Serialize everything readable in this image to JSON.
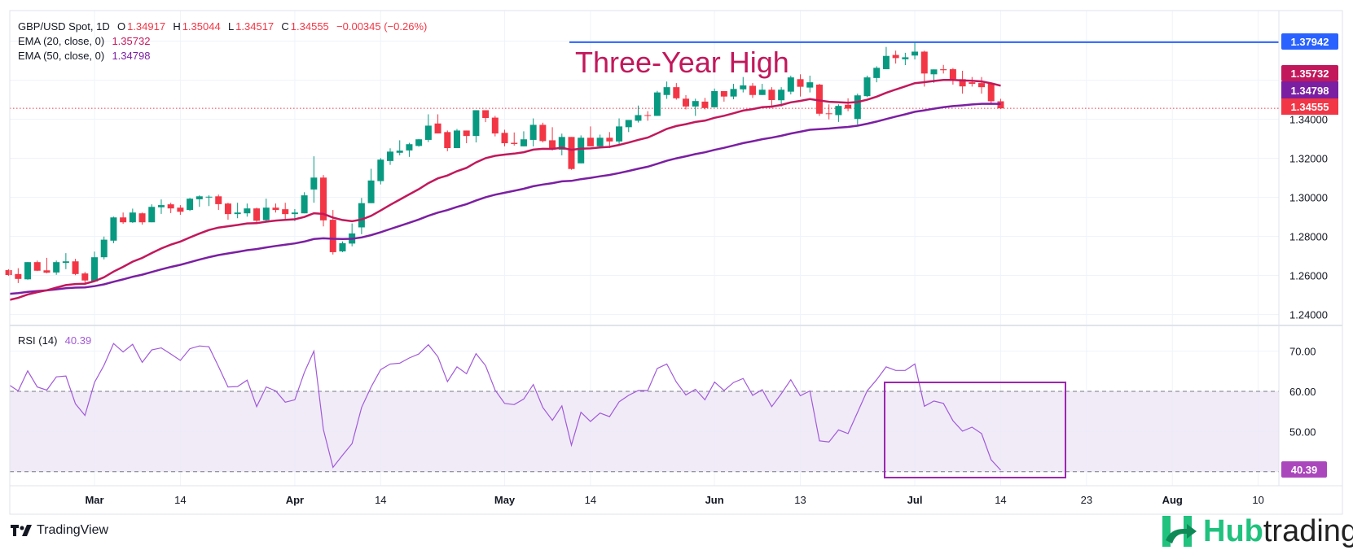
{
  "header": {
    "symbol": "GBP/USD Spot, 1D",
    "o_label": "O",
    "o_value": "1.34917",
    "h_label": "H",
    "h_value": "1.35044",
    "l_label": "L",
    "l_value": "1.34517",
    "c_label": "C",
    "c_value": "1.34555",
    "change": "−0.00345 (−0.26%)",
    "ema20_label": "EMA (20, close, 0)",
    "ema20_value": "1.35732",
    "ema50_label": "EMA (50, close, 0)",
    "ema50_value": "1.34798",
    "rsi_label": "RSI (14)",
    "rsi_value": "40.39"
  },
  "annotation": "Three-Year High",
  "price_tags": {
    "high_line": "1.37942",
    "ema20": "1.35732",
    "ema50": "1.34798",
    "last": "1.34555",
    "rsi": "40.39"
  },
  "branding": {
    "tradingview": "TradingView",
    "hub_a": "Hub",
    "hub_b": "trading"
  },
  "colors": {
    "up": "#089981",
    "down": "#f23645",
    "ema20": "#c2185b",
    "ema50": "#7b1fa2",
    "high_line": "#2962ff",
    "rsi": "#a259d9",
    "rsi_box": "#9c27b0"
  },
  "chart_data": {
    "type": "candlestick",
    "title": "GBP/USD Spot, 1D",
    "price_axis": {
      "ticks": [
        "1.24000",
        "1.26000",
        "1.28000",
        "1.30000",
        "1.32000",
        "1.34000"
      ],
      "grid_levels": [
        1.24,
        1.26,
        1.28,
        1.3,
        1.32,
        1.34,
        1.36,
        1.38
      ]
    },
    "rsi_axis": {
      "ticks": [
        "70.00",
        "60.00",
        "50.00"
      ],
      "band": [
        40,
        60
      ],
      "grid_levels": [
        70,
        60,
        50,
        40
      ]
    },
    "x_ticks": [
      {
        "label": "Mar",
        "bar": 9,
        "bold": true
      },
      {
        "label": "14",
        "bar": 18
      },
      {
        "label": "Apr",
        "bar": 30,
        "bold": true
      },
      {
        "label": "14",
        "bar": 39
      },
      {
        "label": "May",
        "bar": 52,
        "bold": true
      },
      {
        "label": "14",
        "bar": 61
      },
      {
        "label": "Jun",
        "bar": 74,
        "bold": true
      },
      {
        "label": "13",
        "bar": 83
      },
      {
        "label": "Jul",
        "bar": 95,
        "bold": true
      },
      {
        "label": "14",
        "bar": 104
      },
      {
        "label": "23",
        "bar": 113
      },
      {
        "label": "Aug",
        "bar": 122,
        "bold": true
      },
      {
        "label": "10",
        "bar": 131
      }
    ],
    "high_level": 1.37942,
    "last_price": 1.34555,
    "ema_seeds": {
      "ema20": 1.2475,
      "ema50": 1.2506
    },
    "ohlc": [
      [
        1.2627,
        1.2632,
        1.2598,
        1.2602
      ],
      [
        1.2607,
        1.2637,
        1.2561,
        1.2582
      ],
      [
        1.258,
        1.2668,
        1.2578,
        1.2668
      ],
      [
        1.2668,
        1.2676,
        1.2622,
        1.2624
      ],
      [
        1.2626,
        1.269,
        1.2611,
        1.2614
      ],
      [
        1.2615,
        1.2676,
        1.2603,
        1.2668
      ],
      [
        1.2664,
        1.2714,
        1.2632,
        1.2672
      ],
      [
        1.2672,
        1.2685,
        1.2601,
        1.2607
      ],
      [
        1.261,
        1.2618,
        1.2563,
        1.2574
      ],
      [
        1.2569,
        1.2722,
        1.2569,
        1.2693
      ],
      [
        1.2693,
        1.2799,
        1.2682,
        1.2783
      ],
      [
        1.2778,
        1.2901,
        1.2765,
        1.2897
      ],
      [
        1.2897,
        1.2922,
        1.2864,
        1.2872
      ],
      [
        1.2872,
        1.2942,
        1.2869,
        1.2922
      ],
      [
        1.2918,
        1.2922,
        1.286,
        1.2872
      ],
      [
        1.2872,
        1.2964,
        1.2872,
        1.2951
      ],
      [
        1.2949,
        1.2989,
        1.2915,
        1.296
      ],
      [
        1.2964,
        1.2972,
        1.2919,
        1.2943
      ],
      [
        1.2947,
        1.296,
        1.291,
        1.2926
      ],
      [
        1.2935,
        1.2997,
        1.293,
        1.2993
      ],
      [
        1.299,
        1.301,
        1.2951,
        1.3005
      ],
      [
        1.3,
        1.301,
        1.2955,
        1.3003
      ],
      [
        1.3005,
        1.3014,
        1.2935,
        1.2965
      ],
      [
        1.2968,
        1.2972,
        1.2885,
        1.2914
      ],
      [
        1.2914,
        1.2972,
        1.2893,
        1.2922
      ],
      [
        1.2918,
        1.2968,
        1.2901,
        1.2943
      ],
      [
        1.2943,
        1.2947,
        1.2872,
        1.288
      ],
      [
        1.2883,
        1.2993,
        1.2875,
        1.2947
      ],
      [
        1.2947,
        1.2968,
        1.2922,
        1.2935
      ],
      [
        1.2939,
        1.2972,
        1.2889,
        1.2914
      ],
      [
        1.2914,
        1.294,
        1.2878,
        1.2922
      ],
      [
        1.2918,
        1.3026,
        1.2918,
        1.301
      ],
      [
        1.304,
        1.321,
        1.2972,
        1.3101
      ],
      [
        1.3101,
        1.3114,
        1.2851,
        1.2882
      ],
      [
        1.2885,
        1.2935,
        1.2707,
        1.2719
      ],
      [
        1.2723,
        1.2774,
        1.2719,
        1.2765
      ],
      [
        1.2763,
        1.2866,
        1.2749,
        1.2815
      ],
      [
        1.2846,
        1.2997,
        1.2811,
        1.297
      ],
      [
        1.297,
        1.3146,
        1.297,
        1.3086
      ],
      [
        1.3083,
        1.3201,
        1.3066,
        1.3193
      ],
      [
        1.3186,
        1.3251,
        1.3166,
        1.3234
      ],
      [
        1.3228,
        1.3292,
        1.3215,
        1.3239
      ],
      [
        1.324,
        1.3279,
        1.3207,
        1.3272
      ],
      [
        1.3263,
        1.3299,
        1.3259,
        1.3297
      ],
      [
        1.3294,
        1.3425,
        1.3283,
        1.3367
      ],
      [
        1.3378,
        1.3425,
        1.3327,
        1.3327
      ],
      [
        1.3334,
        1.3342,
        1.3236,
        1.3252
      ],
      [
        1.3252,
        1.335,
        1.3252,
        1.3342
      ],
      [
        1.3342,
        1.3342,
        1.3277,
        1.3314
      ],
      [
        1.3314,
        1.3446,
        1.3281,
        1.3446
      ],
      [
        1.3446,
        1.3446,
        1.3385,
        1.3406
      ],
      [
        1.3408,
        1.3417,
        1.3312,
        1.3327
      ],
      [
        1.333,
        1.3346,
        1.3261,
        1.3277
      ],
      [
        1.3279,
        1.3332,
        1.3265,
        1.3273
      ],
      [
        1.3261,
        1.3338,
        1.3261,
        1.3297
      ],
      [
        1.3294,
        1.3404,
        1.3261,
        1.3371
      ],
      [
        1.3371,
        1.3382,
        1.3281,
        1.3288
      ],
      [
        1.3292,
        1.3359,
        1.324,
        1.3244
      ],
      [
        1.3244,
        1.3326,
        1.3215,
        1.3309
      ],
      [
        1.3309,
        1.3309,
        1.3141,
        1.3145
      ],
      [
        1.3174,
        1.3317,
        1.3174,
        1.3305
      ],
      [
        1.3305,
        1.3363,
        1.3261,
        1.3261
      ],
      [
        1.3261,
        1.3321,
        1.3257,
        1.3305
      ],
      [
        1.3305,
        1.3334,
        1.3252,
        1.3286
      ],
      [
        1.3286,
        1.3404,
        1.3273,
        1.3363
      ],
      [
        1.3359,
        1.3396,
        1.3334,
        1.3396
      ],
      [
        1.3392,
        1.347,
        1.3383,
        1.3421
      ],
      [
        1.3421,
        1.3441,
        1.3392,
        1.3417
      ],
      [
        1.3417,
        1.3545,
        1.3417,
        1.3537
      ],
      [
        1.3524,
        1.3593,
        1.3504,
        1.3564
      ],
      [
        1.3564,
        1.3585,
        1.35,
        1.3507
      ],
      [
        1.3505,
        1.3523,
        1.345,
        1.3465
      ],
      [
        1.3465,
        1.3505,
        1.3417,
        1.3493
      ],
      [
        1.349,
        1.3509,
        1.345,
        1.3457
      ],
      [
        1.3461,
        1.3557,
        1.3461,
        1.3544
      ],
      [
        1.3544,
        1.3544,
        1.349,
        1.3516
      ],
      [
        1.3516,
        1.3581,
        1.3502,
        1.3555
      ],
      [
        1.3553,
        1.3616,
        1.3537,
        1.3573
      ],
      [
        1.3571,
        1.3585,
        1.3509,
        1.3524
      ],
      [
        1.3524,
        1.3581,
        1.3524,
        1.3551
      ],
      [
        1.3551,
        1.3564,
        1.3458,
        1.3498
      ],
      [
        1.3497,
        1.3564,
        1.3465,
        1.3551
      ],
      [
        1.3541,
        1.3623,
        1.3527,
        1.3614
      ],
      [
        1.3605,
        1.363,
        1.3516,
        1.3566
      ],
      [
        1.3562,
        1.3623,
        1.3537,
        1.3589
      ],
      [
        1.3577,
        1.3581,
        1.3417,
        1.3428
      ],
      [
        1.343,
        1.3476,
        1.3399,
        1.3427
      ],
      [
        1.3421,
        1.3476,
        1.3386,
        1.3468
      ],
      [
        1.3474,
        1.3507,
        1.3441,
        1.3454
      ],
      [
        1.3401,
        1.3531,
        1.3372,
        1.3522
      ],
      [
        1.3518,
        1.3623,
        1.3513,
        1.3614
      ],
      [
        1.3611,
        1.3671,
        1.3589,
        1.3663
      ],
      [
        1.3656,
        1.377,
        1.3656,
        1.3724
      ],
      [
        1.3729,
        1.3751,
        1.3685,
        1.3713
      ],
      [
        1.3707,
        1.374,
        1.3677,
        1.3717
      ],
      [
        1.3726,
        1.37942,
        1.3706,
        1.3746
      ],
      [
        1.3746,
        1.3751,
        1.3567,
        1.3634
      ],
      [
        1.363,
        1.3655,
        1.3586,
        1.3655
      ],
      [
        1.3656,
        1.3678,
        1.3634,
        1.3651
      ],
      [
        1.3656,
        1.3662,
        1.3577,
        1.3605
      ],
      [
        1.3605,
        1.3648,
        1.3531,
        1.3568
      ],
      [
        1.3589,
        1.3616,
        1.3567,
        1.3581
      ],
      [
        1.3585,
        1.3616,
        1.3531,
        1.3564
      ],
      [
        1.3582,
        1.3582,
        1.3482,
        1.3492
      ],
      [
        1.34917,
        1.35044,
        1.34517,
        1.34555
      ]
    ],
    "rsi": [
      61.5,
      60.1,
      65.1,
      61.1,
      60.3,
      63.6,
      63.8,
      56.9,
      54.0,
      62.2,
      66.5,
      71.9,
      69.8,
      71.7,
      67.2,
      70.3,
      70.8,
      69.3,
      67.7,
      70.6,
      71.3,
      71.1,
      66.2,
      61.1,
      61.2,
      62.8,
      56.2,
      61.1,
      60.1,
      57.3,
      57.9,
      64.7,
      70.0,
      50.5,
      41.1,
      44.1,
      47.0,
      56.0,
      61.1,
      65.4,
      66.8,
      67.0,
      68.3,
      69.3,
      71.6,
      68.6,
      62.4,
      66.1,
      64.4,
      69.4,
      66.4,
      60.3,
      57.0,
      56.7,
      58.1,
      61.7,
      56.0,
      52.8,
      56.4,
      46.6,
      54.8,
      52.5,
      54.6,
      53.7,
      57.4,
      59.0,
      60.2,
      60.2,
      65.7,
      66.8,
      62.3,
      59.1,
      60.5,
      57.9,
      62.3,
      60.2,
      62.2,
      63.2,
      59.0,
      60.4,
      56.2,
      59.4,
      62.9,
      58.9,
      60.1,
      47.7,
      47.4,
      50.4,
      49.5,
      54.8,
      60.1,
      62.9,
      66.1,
      65.2,
      65.2,
      66.8,
      56.3,
      57.6,
      57.0,
      52.7,
      50.1,
      51.1,
      49.5,
      43.0,
      40.39
    ]
  }
}
